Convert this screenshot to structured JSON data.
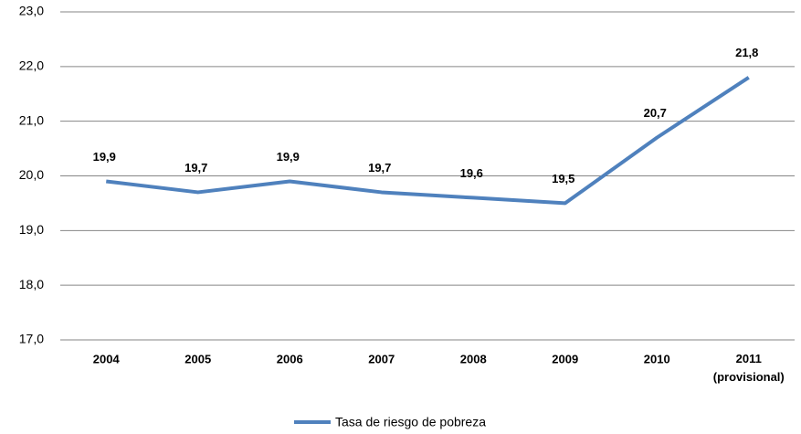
{
  "chart_data": {
    "type": "line",
    "categories": [
      "2004",
      "2005",
      "2006",
      "2007",
      "2008",
      "2009",
      "2010",
      "2011 (provisional)"
    ],
    "series": [
      {
        "name": "Tasa de riesgo de pobreza",
        "color": "#4f81bd",
        "values": [
          19.9,
          19.7,
          19.9,
          19.7,
          19.6,
          19.5,
          20.7,
          21.8
        ],
        "value_labels": [
          "19,9",
          "19,7",
          "19,9",
          "19,7",
          "19,6",
          "19,5",
          "20,7",
          "21,8"
        ]
      }
    ],
    "ylim": [
      17,
      23
    ],
    "yticks": [
      {
        "value": 17,
        "label": "17,0"
      },
      {
        "value": 18,
        "label": "18,0"
      },
      {
        "value": 19,
        "label": "19,0"
      },
      {
        "value": 20,
        "label": "20,0"
      },
      {
        "value": 21,
        "label": "21,0"
      },
      {
        "value": 22,
        "label": "22,0"
      },
      {
        "value": 23,
        "label": "23,0"
      }
    ],
    "grid": true,
    "legend": "bottom"
  }
}
